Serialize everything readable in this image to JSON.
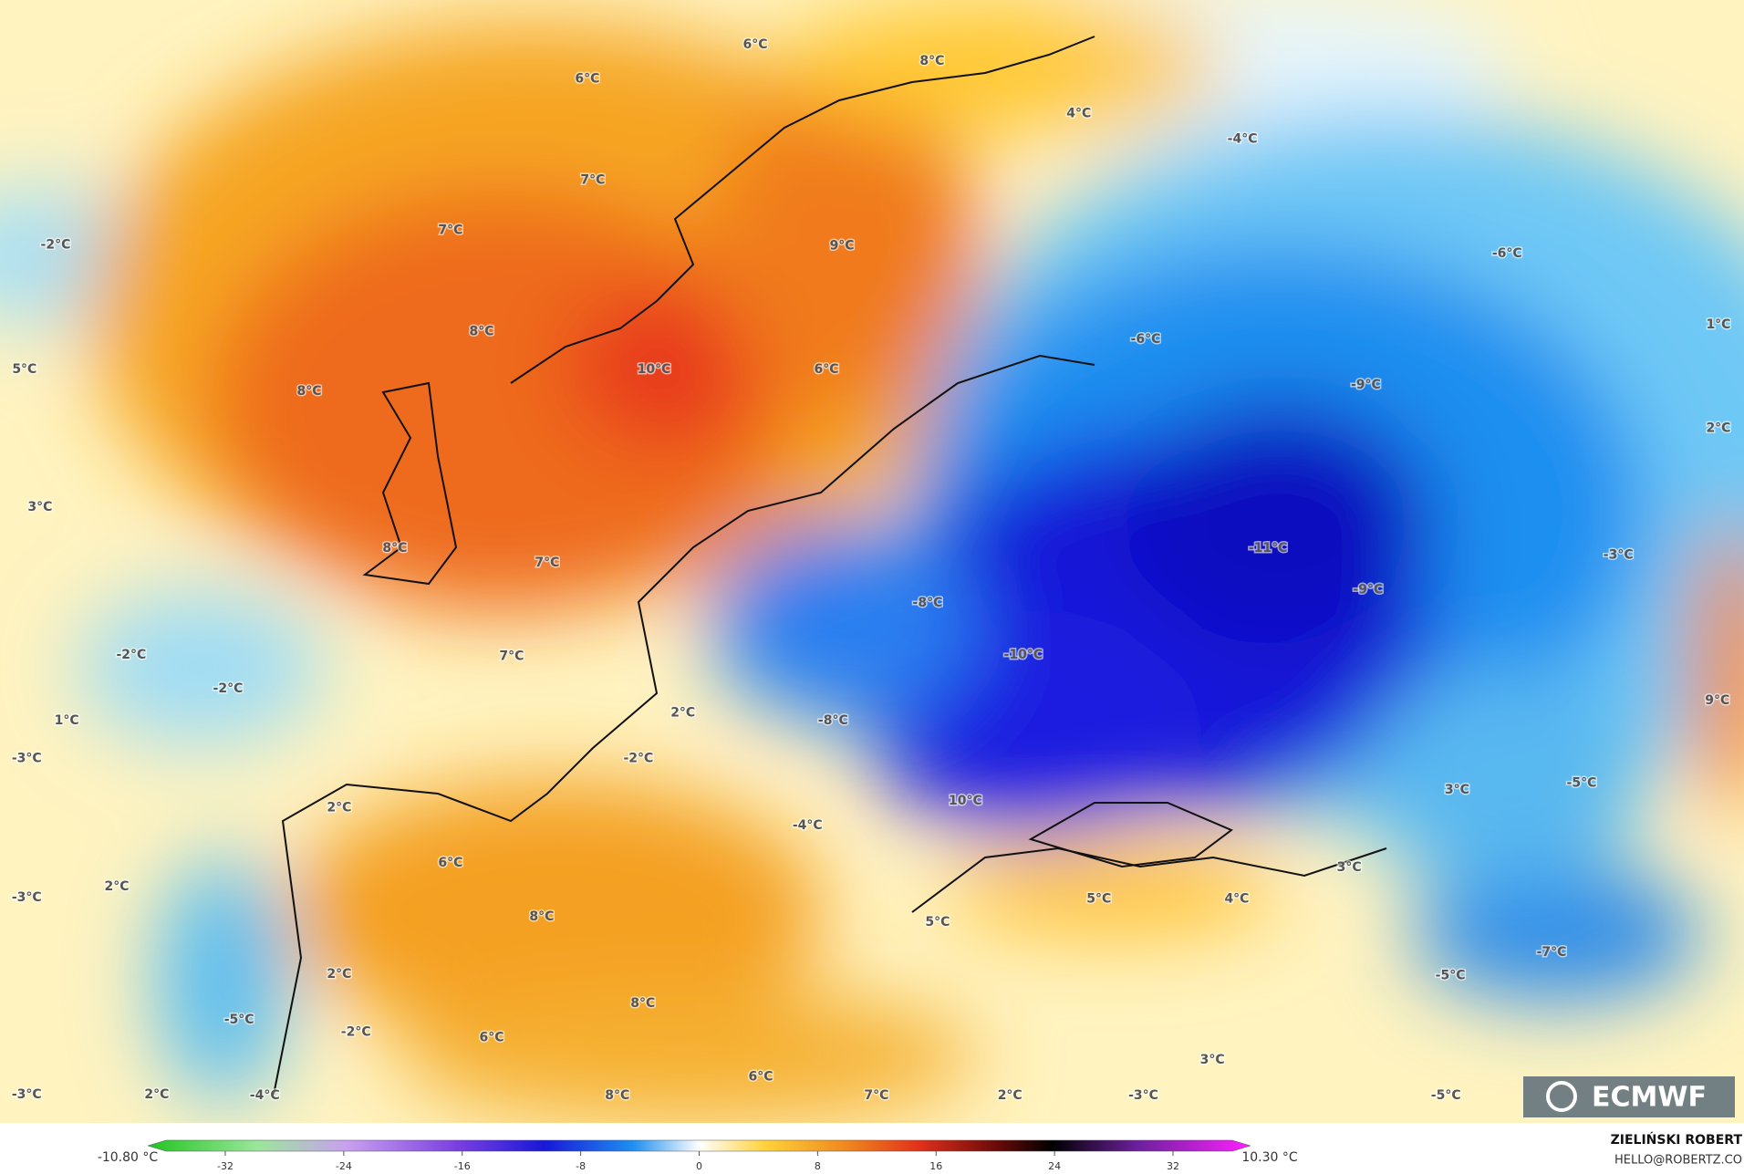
{
  "map": {
    "labels": [
      "6°C",
      "8°C",
      "6°C",
      "4°C",
      "-4°C",
      "7°C",
      "-2°C",
      "7°C",
      "9°C",
      "-6°C",
      "1°C",
      "-6°C",
      "8°C",
      "5°C",
      "10°C",
      "6°C",
      "-9°C",
      "8°C",
      "2°C",
      "3°C",
      "-11°C",
      "8°C",
      "7°C",
      "-3°C",
      "-9°C",
      "-8°C",
      "-10°C",
      "-2°C",
      "7°C",
      "-2°C",
      "9°C",
      "1°C",
      "2°C",
      "-8°C",
      "-3°C",
      "-2°C",
      "-5°C",
      "3°C",
      "2°C",
      "10°C",
      "-4°C",
      "6°C",
      "3°C",
      "2°C",
      "-3°C",
      "5°C",
      "4°C",
      "8°C",
      "5°C",
      "-7°C",
      "2°C",
      "-5°C",
      "8°C",
      "-5°C",
      "-2°C",
      "6°C",
      "3°C",
      "6°C",
      "2°C",
      "-3°C",
      "-4°C",
      "8°C",
      "7°C",
      "2°C",
      "-3°C",
      "-5°C"
    ],
    "logo": "ECMWF"
  },
  "colorbar": {
    "min_label": "-10.80 °C",
    "max_label": "10.30 °C",
    "ticks": [
      -32,
      -24,
      -16,
      -8,
      0,
      8,
      16,
      24,
      32
    ]
  },
  "credits": {
    "author": "ZIELIŃSKI ROBERT",
    "contact": "HELLO@ROBERTZ.CO"
  }
}
